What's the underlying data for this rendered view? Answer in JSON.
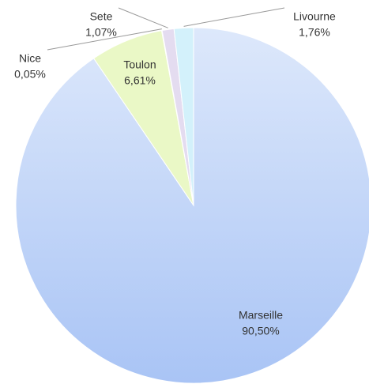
{
  "chart_data": {
    "type": "pie",
    "categories": [
      "Marseille",
      "Toulon",
      "Nice",
      "Sete",
      "Livourne"
    ],
    "values": [
      90.5,
      6.61,
      0.05,
      1.07,
      1.76
    ],
    "value_labels": [
      "90,50%",
      "6,61%",
      "0,05%",
      "1,07%",
      "1,76%"
    ],
    "colors": [
      "#b7cdf6",
      "#eaf8c6",
      "#f3f7d8",
      "#e4dcf0",
      "#d3f1fb"
    ]
  }
}
